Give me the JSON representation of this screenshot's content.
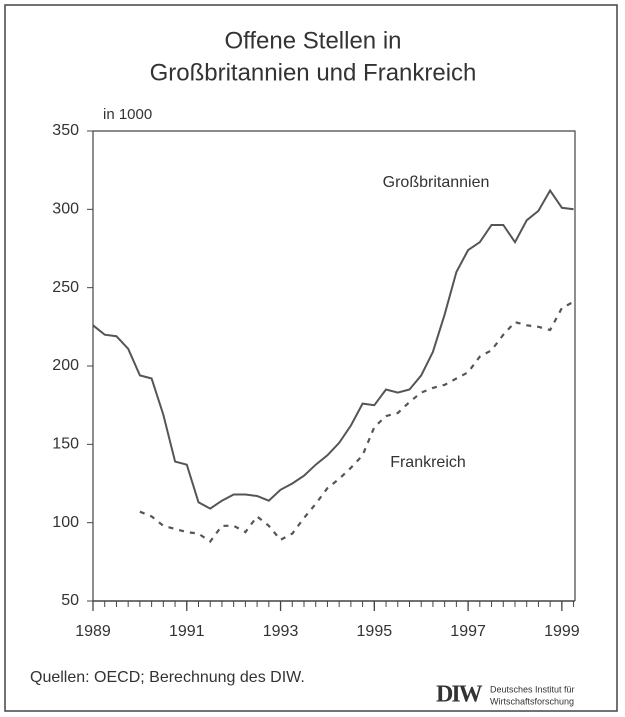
{
  "chart_data": {
    "type": "line",
    "title": [
      "Offene Stellen in",
      "Großbritannien und Frankreich"
    ],
    "y_label": "in 1000",
    "x": [
      1989,
      1989.25,
      1989.5,
      1989.75,
      1990,
      1990.25,
      1990.5,
      1990.75,
      1991,
      1991.25,
      1991.5,
      1991.75,
      1992,
      1992.25,
      1992.5,
      1992.75,
      1993,
      1993.25,
      1993.5,
      1993.75,
      1994,
      1994.25,
      1994.5,
      1994.75,
      1995,
      1995.25,
      1995.5,
      1995.75,
      1996,
      1996.25,
      1996.5,
      1996.75,
      1997,
      1997.25,
      1997.5,
      1997.75,
      1998,
      1998.25,
      1998.5,
      1998.75,
      1999,
      1999.25
    ],
    "series": [
      {
        "name": "Großbritannien",
        "color": "#555555",
        "dash": false,
        "values": [
          226,
          220,
          219,
          211,
          194,
          192,
          169,
          139,
          137,
          113,
          109,
          114,
          118,
          118,
          117,
          114,
          121,
          125,
          130,
          137,
          143,
          151,
          162,
          176,
          175,
          185,
          183,
          185,
          194,
          209,
          233,
          260,
          274,
          279,
          290,
          290,
          279,
          293,
          299,
          312,
          301,
          300
        ]
      },
      {
        "name": "Frankreich",
        "color": "#555555",
        "dash": true,
        "values": [
          null,
          null,
          null,
          null,
          107,
          104,
          98,
          96,
          94,
          93,
          88,
          98,
          98,
          94,
          104,
          98,
          89,
          93,
          103,
          112,
          122,
          128,
          135,
          143,
          161,
          168,
          170,
          177,
          183,
          186,
          188,
          192,
          196,
          206,
          210,
          220,
          228,
          226,
          225,
          223,
          237,
          241
        ]
      }
    ],
    "xlim": [
      1989,
      1999.28
    ],
    "xticks": [
      1989,
      1991,
      1993,
      1995,
      1997,
      1999
    ],
    "ylim": [
      50,
      350
    ],
    "yticks": [
      50,
      100,
      150,
      200,
      250,
      300,
      350
    ],
    "source": "Quellen: OECD; Berechnung des DIW.",
    "logo": {
      "mark": "DIW",
      "lines": [
        "Deutsches Institut für",
        "Wirtschaftsforschung"
      ]
    }
  }
}
